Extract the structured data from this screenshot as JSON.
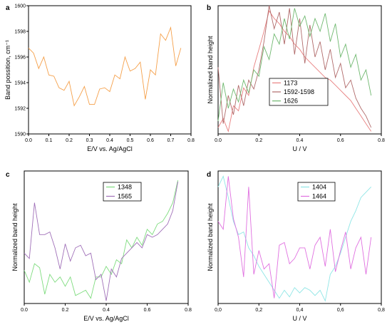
{
  "chart_data": [
    {
      "panel": "a",
      "type": "line",
      "xlabel": "E/V vs. Ag/AgCl",
      "ylabel": "Band possition, cm⁻¹",
      "xlim": [
        0.0,
        0.8
      ],
      "ylim": [
        1590,
        1600
      ],
      "xticks": [
        "0.0",
        "0.1",
        "0.2",
        "0.3",
        "0.4",
        "0.5",
        "0.6",
        "0.7",
        "0.8"
      ],
      "yticks": [
        "1590",
        "1592",
        "1594",
        "1596",
        "1598",
        "1600"
      ],
      "series": [
        {
          "color": "#f5a04a",
          "x": [
            0.0,
            0.025,
            0.05,
            0.075,
            0.1,
            0.125,
            0.15,
            0.175,
            0.2,
            0.225,
            0.25,
            0.275,
            0.3,
            0.325,
            0.35,
            0.375,
            0.4,
            0.425,
            0.45,
            0.475,
            0.5,
            0.525,
            0.55,
            0.575,
            0.6,
            0.625,
            0.65,
            0.675,
            0.7,
            0.725,
            0.75
          ],
          "y": [
            1596.7,
            1596.3,
            1595.1,
            1596.0,
            1594.6,
            1594.5,
            1593.6,
            1593.4,
            1594.1,
            1592.2,
            1592.9,
            1593.7,
            1592.3,
            1592.3,
            1593.5,
            1593.6,
            1593.3,
            1594.6,
            1594.3,
            1596.0,
            1594.9,
            1595.1,
            1595.6,
            1592.7,
            1595.0,
            1594.6,
            1597.8,
            1597.3,
            1598.3,
            1595.3,
            1596.7
          ]
        }
      ]
    },
    {
      "panel": "b",
      "type": "line",
      "xlabel": "U / V",
      "ylabel": "Normalized band height",
      "xlim": [
        0.0,
        0.8
      ],
      "xticks": [
        "0.0",
        "0.2",
        "0.4",
        "0.6",
        "0.8"
      ],
      "legend": [
        "1173",
        "1592-1598",
        "1626"
      ],
      "series": [
        {
          "name": "1173",
          "color": "#e88080",
          "x": [
            0.0,
            0.025,
            0.05,
            0.075,
            0.1,
            0.125,
            0.15,
            0.175,
            0.2,
            0.225,
            0.25,
            0.275,
            0.3,
            0.325,
            0.35,
            0.375,
            0.4,
            0.425,
            0.45,
            0.475,
            0.5,
            0.525,
            0.55,
            0.575,
            0.6,
            0.625,
            0.65,
            0.675,
            0.7,
            0.725,
            0.75
          ],
          "y": [
            0.05,
            0.12,
            0.02,
            0.22,
            0.18,
            0.36,
            0.3,
            0.52,
            0.66,
            0.8,
            0.96,
            0.9,
            0.86,
            0.8,
            0.76,
            0.7,
            0.66,
            0.6,
            0.56,
            0.52,
            0.48,
            0.44,
            0.42,
            0.38,
            0.34,
            0.3,
            0.26,
            0.2,
            0.14,
            0.08,
            0.02
          ]
        },
        {
          "name": "1592-1598",
          "color": "#b06a6a",
          "x": [
            0.0,
            0.025,
            0.05,
            0.075,
            0.1,
            0.125,
            0.15,
            0.175,
            0.2,
            0.225,
            0.25,
            0.275,
            0.3,
            0.325,
            0.35,
            0.375,
            0.4,
            0.425,
            0.45,
            0.475,
            0.5,
            0.525,
            0.55,
            0.575,
            0.6,
            0.625,
            0.65,
            0.675,
            0.7,
            0.725,
            0.75
          ],
          "y": [
            0.52,
            0.08,
            0.3,
            0.15,
            0.38,
            0.22,
            0.42,
            0.35,
            0.5,
            0.72,
            1.0,
            0.82,
            0.95,
            0.7,
            0.98,
            0.62,
            0.9,
            0.55,
            0.85,
            0.6,
            0.72,
            0.5,
            0.66,
            0.44,
            0.55,
            0.36,
            0.42,
            0.28,
            0.2,
            0.14,
            0.05
          ]
        },
        {
          "name": "1626",
          "color": "#6fb86f",
          "x": [
            0.0,
            0.025,
            0.05,
            0.075,
            0.1,
            0.125,
            0.15,
            0.175,
            0.2,
            0.225,
            0.25,
            0.275,
            0.3,
            0.325,
            0.35,
            0.375,
            0.4,
            0.425,
            0.45,
            0.475,
            0.5,
            0.525,
            0.55,
            0.575,
            0.6,
            0.625,
            0.65,
            0.675,
            0.7,
            0.725,
            0.75
          ],
          "y": [
            0.1,
            0.4,
            0.2,
            0.35,
            0.25,
            0.42,
            0.32,
            0.5,
            0.45,
            0.68,
            0.58,
            0.78,
            0.7,
            0.9,
            0.74,
            0.98,
            0.84,
            0.92,
            0.76,
            0.9,
            0.8,
            0.94,
            0.72,
            0.86,
            0.6,
            0.7,
            0.52,
            0.62,
            0.42,
            0.5,
            0.3
          ]
        }
      ]
    },
    {
      "panel": "c",
      "type": "line",
      "xlabel": "E/V vs. Ag/AgCl",
      "ylabel": "Normalized band height",
      "xlim": [
        0.0,
        0.8
      ],
      "xticks": [
        "0.0",
        "0.2",
        "0.4",
        "0.6",
        "0.8"
      ],
      "legend": [
        "1348",
        "1565"
      ],
      "series": [
        {
          "name": "1348",
          "color": "#7fdc7f",
          "x": [
            0.0,
            0.025,
            0.05,
            0.075,
            0.1,
            0.125,
            0.15,
            0.175,
            0.2,
            0.225,
            0.25,
            0.275,
            0.3,
            0.325,
            0.35,
            0.375,
            0.4,
            0.425,
            0.45,
            0.475,
            0.5,
            0.525,
            0.55,
            0.575,
            0.6,
            0.625,
            0.65,
            0.675,
            0.7,
            0.725,
            0.75
          ],
          "y": [
            0.25,
            0.16,
            0.3,
            0.27,
            0.07,
            0.22,
            0.16,
            0.2,
            0.13,
            0.2,
            0.06,
            0.08,
            0.1,
            0.04,
            0.2,
            0.2,
            0.28,
            0.22,
            0.33,
            0.3,
            0.48,
            0.42,
            0.5,
            0.44,
            0.56,
            0.52,
            0.6,
            0.62,
            0.68,
            0.76,
            0.93
          ]
        },
        {
          "name": "1565",
          "color": "#a070b8",
          "x": [
            0.0,
            0.025,
            0.05,
            0.075,
            0.1,
            0.125,
            0.15,
            0.175,
            0.2,
            0.225,
            0.25,
            0.275,
            0.3,
            0.325,
            0.35,
            0.375,
            0.4,
            0.425,
            0.45,
            0.475,
            0.5,
            0.525,
            0.55,
            0.575,
            0.6,
            0.625,
            0.65,
            0.675,
            0.7,
            0.725,
            0.75
          ],
          "y": [
            0.38,
            0.34,
            0.76,
            0.52,
            0.52,
            0.54,
            0.42,
            0.26,
            0.45,
            0.32,
            0.42,
            0.44,
            0.36,
            0.38,
            0.18,
            0.22,
            0.02,
            0.26,
            0.2,
            0.34,
            0.38,
            0.42,
            0.46,
            0.42,
            0.52,
            0.5,
            0.52,
            0.56,
            0.6,
            0.7,
            0.92
          ]
        }
      ]
    },
    {
      "panel": "d",
      "type": "line",
      "xlabel": "U / V",
      "ylabel": "Normalized band height",
      "xlim": [
        0.0,
        0.8
      ],
      "xticks": [
        "0,0",
        "0,2",
        "0,4",
        "0,6",
        "0,8"
      ],
      "legend": [
        "1404",
        "1464"
      ],
      "series": [
        {
          "name": "1404",
          "color": "#8fe6e6",
          "x": [
            0.0,
            0.025,
            0.05,
            0.075,
            0.1,
            0.125,
            0.15,
            0.175,
            0.2,
            0.225,
            0.25,
            0.275,
            0.3,
            0.325,
            0.35,
            0.375,
            0.4,
            0.425,
            0.45,
            0.475,
            0.5,
            0.525,
            0.55,
            0.575,
            0.6,
            0.625,
            0.65,
            0.675,
            0.7,
            0.725,
            0.75
          ],
          "y": [
            0.88,
            0.96,
            0.8,
            0.62,
            0.52,
            0.54,
            0.42,
            0.36,
            0.28,
            0.22,
            0.16,
            0.1,
            0.04,
            0.1,
            0.05,
            0.12,
            0.08,
            0.12,
            0.1,
            0.06,
            0.1,
            0.02,
            0.22,
            0.28,
            0.38,
            0.5,
            0.62,
            0.7,
            0.8,
            0.84,
            0.88
          ]
        },
        {
          "name": "1464",
          "color": "#e070e0",
          "x": [
            0.0,
            0.025,
            0.05,
            0.075,
            0.1,
            0.125,
            0.15,
            0.175,
            0.2,
            0.225,
            0.25,
            0.275,
            0.3,
            0.325,
            0.35,
            0.375,
            0.4,
            0.425,
            0.45,
            0.475,
            0.5,
            0.525,
            0.55,
            0.575,
            0.6,
            0.625,
            0.65,
            0.675,
            0.7,
            0.725,
            0.75
          ],
          "y": [
            0.62,
            0.56,
            0.96,
            0.64,
            0.5,
            0.2,
            0.88,
            0.22,
            0.4,
            0.26,
            0.3,
            0.04,
            0.44,
            0.46,
            0.3,
            0.34,
            0.42,
            0.42,
            0.26,
            0.44,
            0.5,
            0.28,
            0.56,
            0.24,
            0.4,
            0.54,
            0.26,
            0.42,
            0.5,
            0.22,
            0.5
          ]
        }
      ]
    }
  ]
}
